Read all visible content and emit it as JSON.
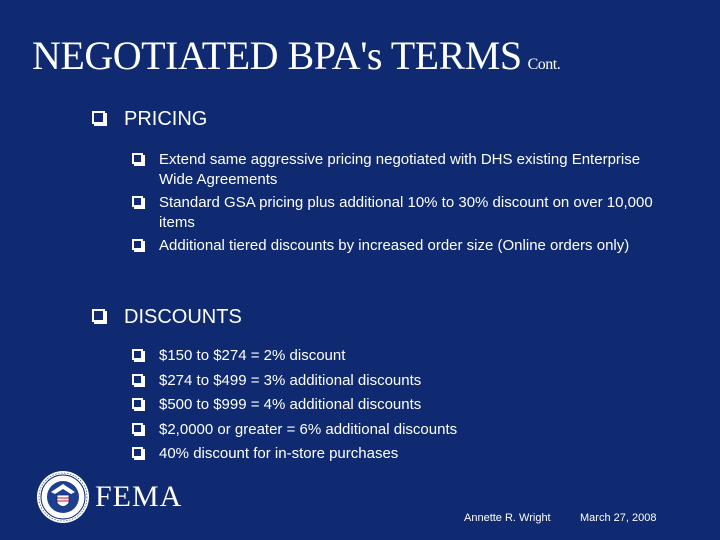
{
  "slide": {
    "title": "NEGOTIATED BPA's TERMS",
    "title_suffix": "Cont."
  },
  "pricing": {
    "heading": "PRICING",
    "items": [
      "Extend same aggressive pricing negotiated with DHS existing Enterprise Wide Agreements",
      "Standard GSA pricing plus additional 10% to 30% discount on over 10,000 items",
      "Additional tiered discounts by increased order size (Online orders only)"
    ]
  },
  "discounts": {
    "heading": "DISCOUNTS",
    "items": [
      "$150 to $274 = 2% discount",
      "$274 to $499 = 3% additional discounts",
      "$500 to $999 = 4% additional discounts",
      "$2,0000 or greater = 6% additional discounts",
      "40% discount for in-store purchases"
    ]
  },
  "footer": {
    "logo_text": "FEMA",
    "author": "Annette R. Wright",
    "date": "March 27, 2008"
  },
  "colors": {
    "background": "#0f2a70",
    "text": "#ffffff"
  }
}
